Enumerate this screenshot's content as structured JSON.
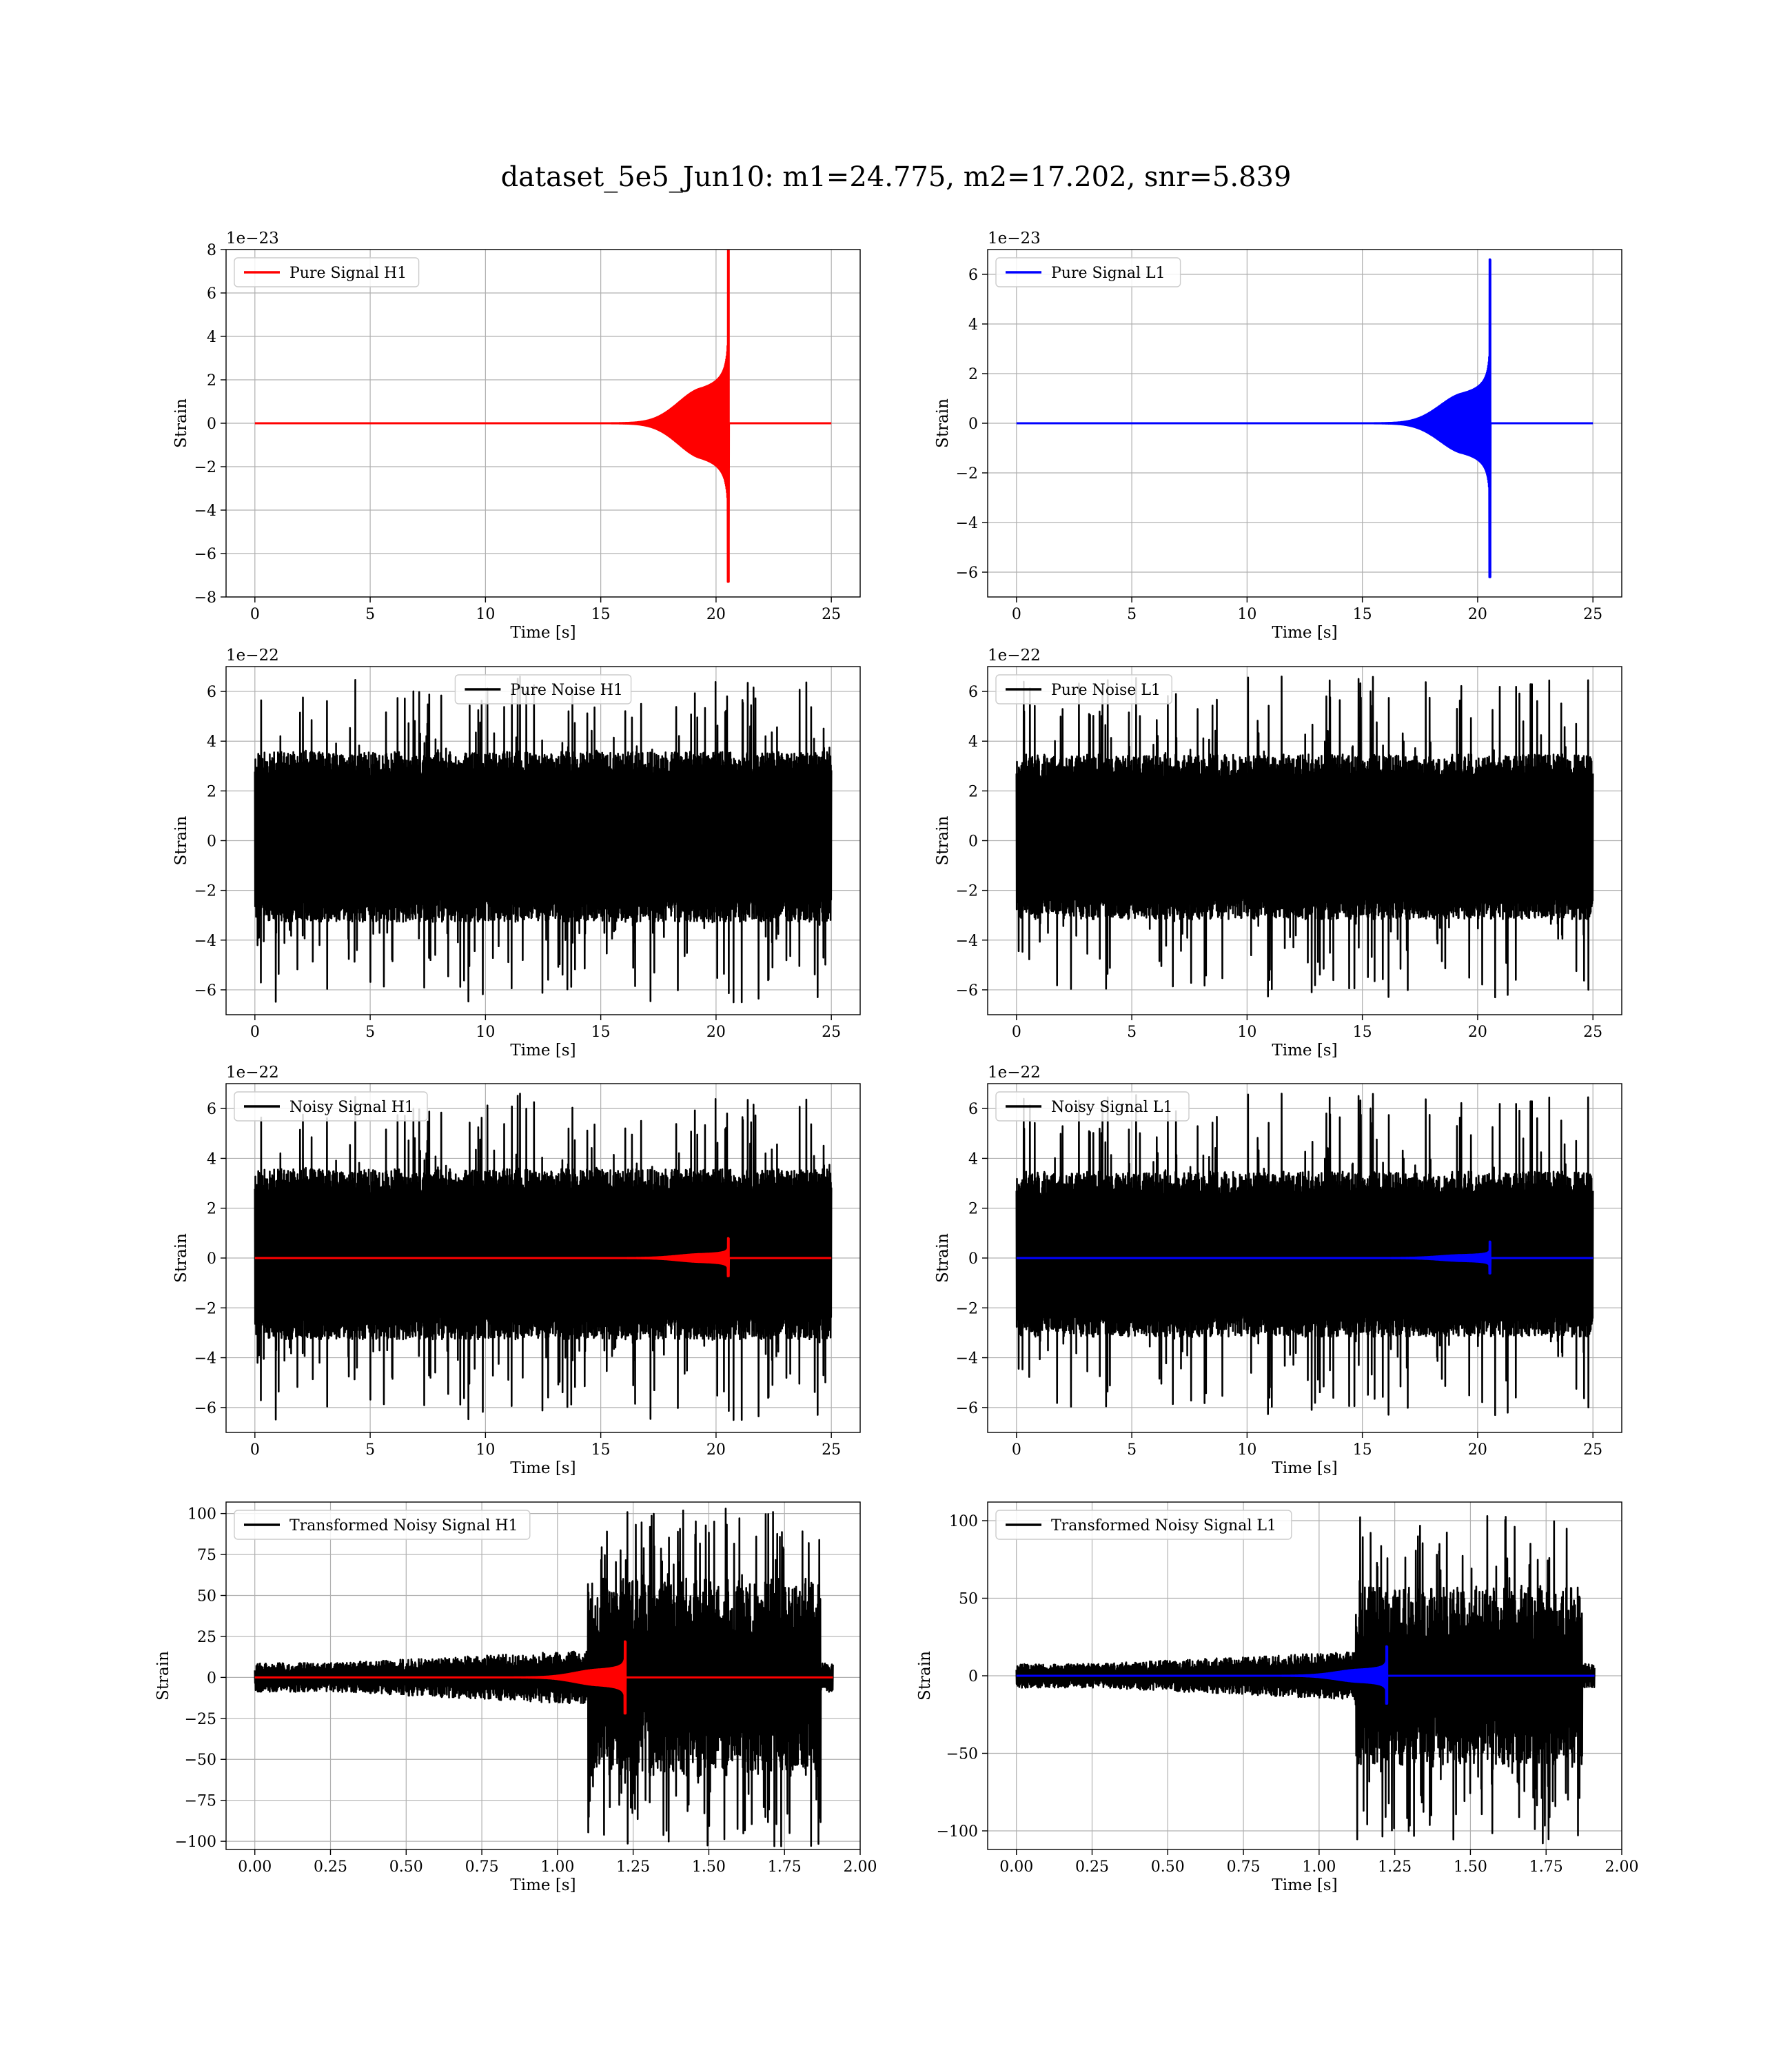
{
  "figure": {
    "title": "dataset_5e5_Jun10: m1=24.775, m2=17.202, snr=5.839"
  },
  "colors": {
    "h1_signal": "#ff0000",
    "l1_signal": "#0000ff",
    "noise": "#000000",
    "grid": "#b0b0b0"
  },
  "chart_data": [
    {
      "type": "line",
      "legend": "Pure Signal H1",
      "legend_position": "upper-left",
      "xlabel": "Time [s]",
      "ylabel": "Strain",
      "offset_text": "1e−23",
      "xlim": [
        -1.25,
        26.25
      ],
      "ylim": [
        -8,
        8
      ],
      "xticks": [
        0,
        5,
        10,
        15,
        20,
        25
      ],
      "xtick_labels": [
        "0",
        "5",
        "10",
        "15",
        "20",
        "25"
      ],
      "yticks": [
        -8,
        -6,
        -4,
        -2,
        0,
        2,
        4,
        6,
        8
      ],
      "ytick_labels": [
        "−8",
        "−6",
        "−4",
        "−2",
        "0",
        "2",
        "4",
        "6",
        "8"
      ],
      "grid": true,
      "series": [
        {
          "kind": "chirp",
          "color": "#ff0000",
          "x_start": 0,
          "x_end": 25,
          "merger_time": 20.55,
          "peak_positive": 8.0,
          "peak_negative": -7.3,
          "plateau": 2.0
        }
      ]
    },
    {
      "type": "line",
      "legend": "Pure Signal L1",
      "legend_position": "upper-left",
      "xlabel": "Time [s]",
      "ylabel": "Strain",
      "offset_text": "1e−23",
      "xlim": [
        -1.25,
        26.25
      ],
      "ylim": [
        -7,
        7
      ],
      "xticks": [
        0,
        5,
        10,
        15,
        20,
        25
      ],
      "xtick_labels": [
        "0",
        "5",
        "10",
        "15",
        "20",
        "25"
      ],
      "yticks": [
        -6,
        -4,
        -2,
        0,
        2,
        4,
        6
      ],
      "ytick_labels": [
        "−6",
        "−4",
        "−2",
        "0",
        "2",
        "4",
        "6"
      ],
      "grid": true,
      "series": [
        {
          "kind": "chirp",
          "color": "#0000ff",
          "x_start": 0,
          "x_end": 25,
          "merger_time": 20.55,
          "peak_positive": 6.6,
          "peak_negative": -6.2,
          "plateau": 1.5
        }
      ]
    },
    {
      "type": "line",
      "legend": "Pure Noise H1",
      "legend_position": "upper-center",
      "xlabel": "Time [s]",
      "ylabel": "Strain",
      "offset_text": "1e−22",
      "xlim": [
        -1.25,
        26.25
      ],
      "ylim": [
        -7,
        7
      ],
      "xticks": [
        0,
        5,
        10,
        15,
        20,
        25
      ],
      "xtick_labels": [
        "0",
        "5",
        "10",
        "15",
        "20",
        "25"
      ],
      "yticks": [
        -6,
        -4,
        -2,
        0,
        2,
        4,
        6
      ],
      "ytick_labels": [
        "−6",
        "−4",
        "−2",
        "0",
        "2",
        "4",
        "6"
      ],
      "grid": true,
      "series": [
        {
          "kind": "noise",
          "color": "#000000",
          "x_start": 0,
          "x_end": 25,
          "max": 6.6,
          "min": -6.5,
          "body_high": 3.5,
          "body_low": -3.2,
          "seed": 11
        }
      ]
    },
    {
      "type": "line",
      "legend": "Pure Noise L1",
      "legend_position": "upper-left",
      "xlabel": "Time [s]",
      "ylabel": "Strain",
      "offset_text": "1e−22",
      "xlim": [
        -1.25,
        26.25
      ],
      "ylim": [
        -7,
        7
      ],
      "xticks": [
        0,
        5,
        10,
        15,
        20,
        25
      ],
      "xtick_labels": [
        "0",
        "5",
        "10",
        "15",
        "20",
        "25"
      ],
      "yticks": [
        -6,
        -4,
        -2,
        0,
        2,
        4,
        6
      ],
      "ytick_labels": [
        "−6",
        "−4",
        "−2",
        "0",
        "2",
        "4",
        "6"
      ],
      "grid": true,
      "series": [
        {
          "kind": "noise",
          "color": "#000000",
          "x_start": 0,
          "x_end": 25,
          "max": 6.6,
          "min": -6.3,
          "body_high": 3.4,
          "body_low": -3.1,
          "seed": 23
        }
      ]
    },
    {
      "type": "line",
      "legend": "Noisy Signal H1",
      "legend_position": "upper-left",
      "xlabel": "Time [s]",
      "ylabel": "Strain",
      "offset_text": "1e−22",
      "xlim": [
        -1.25,
        26.25
      ],
      "ylim": [
        -7,
        7
      ],
      "xticks": [
        0,
        5,
        10,
        15,
        20,
        25
      ],
      "xtick_labels": [
        "0",
        "5",
        "10",
        "15",
        "20",
        "25"
      ],
      "yticks": [
        -6,
        -4,
        -2,
        0,
        2,
        4,
        6
      ],
      "ytick_labels": [
        "−6",
        "−4",
        "−2",
        "0",
        "2",
        "4",
        "6"
      ],
      "grid": true,
      "series": [
        {
          "kind": "noise",
          "color": "#000000",
          "x_start": 0,
          "x_end": 25,
          "max": 6.6,
          "min": -6.5,
          "body_high": 3.5,
          "body_low": -3.2,
          "seed": 11
        },
        {
          "kind": "chirp",
          "color": "#ff0000",
          "x_start": 0,
          "x_end": 25,
          "merger_time": 20.55,
          "peak_positive": 0.8,
          "peak_negative": -0.73,
          "plateau": 0.2
        }
      ]
    },
    {
      "type": "line",
      "legend": "Noisy Signal L1",
      "legend_position": "upper-left",
      "xlabel": "Time [s]",
      "ylabel": "Strain",
      "offset_text": "1e−22",
      "xlim": [
        -1.25,
        26.25
      ],
      "ylim": [
        -7,
        7
      ],
      "xticks": [
        0,
        5,
        10,
        15,
        20,
        25
      ],
      "xtick_labels": [
        "0",
        "5",
        "10",
        "15",
        "20",
        "25"
      ],
      "yticks": [
        -6,
        -4,
        -2,
        0,
        2,
        4,
        6
      ],
      "ytick_labels": [
        "−6",
        "−4",
        "−2",
        "0",
        "2",
        "4",
        "6"
      ],
      "grid": true,
      "series": [
        {
          "kind": "noise",
          "color": "#000000",
          "x_start": 0,
          "x_end": 25,
          "max": 6.6,
          "min": -6.3,
          "body_high": 3.4,
          "body_low": -3.1,
          "seed": 23
        },
        {
          "kind": "chirp",
          "color": "#0000ff",
          "x_start": 0,
          "x_end": 25,
          "merger_time": 20.55,
          "peak_positive": 0.66,
          "peak_negative": -0.62,
          "plateau": 0.15
        }
      ]
    },
    {
      "type": "line",
      "legend": "Transformed Noisy Signal H1",
      "legend_position": "upper-left",
      "xlabel": "Time [s]",
      "ylabel": "Strain",
      "offset_text": "",
      "xlim": [
        -0.095,
        2.0
      ],
      "ylim": [
        -105,
        107
      ],
      "xticks": [
        0,
        0.25,
        0.5,
        0.75,
        1.0,
        1.25,
        1.5,
        1.75,
        2.0
      ],
      "xtick_labels": [
        "0.00",
        "0.25",
        "0.50",
        "0.75",
        "1.00",
        "1.25",
        "1.50",
        "1.75",
        "2.00"
      ],
      "yticks": [
        -100,
        -75,
        -50,
        -25,
        0,
        25,
        50,
        75,
        100
      ],
      "ytick_labels": [
        "−100",
        "−75",
        "−50",
        "−25",
        "0",
        "25",
        "50",
        "75",
        "100"
      ],
      "grid": true,
      "series": [
        {
          "kind": "whitened",
          "color": "#000000",
          "x_start": 0,
          "x_end": 1.91,
          "step_time": 1.1,
          "end_time": 1.87,
          "early_amp": 8,
          "mid_amp": 15,
          "late_amp": 55,
          "max": 103,
          "min": -103,
          "seed": 31
        },
        {
          "kind": "chirp",
          "color": "#ff0000",
          "x_start": 0,
          "x_end": 1.91,
          "merger_time": 1.225,
          "peak_positive": 22,
          "peak_negative": -22,
          "plateau": 6
        }
      ]
    },
    {
      "type": "line",
      "legend": "Transformed Noisy Signal L1",
      "legend_position": "upper-left",
      "xlabel": "Time [s]",
      "ylabel": "Strain",
      "offset_text": "",
      "xlim": [
        -0.095,
        2.0
      ],
      "ylim": [
        -112,
        112
      ],
      "xticks": [
        0,
        0.25,
        0.5,
        0.75,
        1.0,
        1.25,
        1.5,
        1.75,
        2.0
      ],
      "xtick_labels": [
        "0.00",
        "0.25",
        "0.50",
        "0.75",
        "1.00",
        "1.25",
        "1.50",
        "1.75",
        "2.00"
      ],
      "yticks": [
        -100,
        -50,
        0,
        50,
        100
      ],
      "ytick_labels": [
        "−100",
        "−50",
        "0",
        "50",
        "100"
      ],
      "grid": true,
      "series": [
        {
          "kind": "whitened",
          "color": "#000000",
          "x_start": 0,
          "x_end": 1.91,
          "step_time": 1.12,
          "end_time": 1.87,
          "early_amp": 7,
          "mid_amp": 14,
          "late_amp": 52,
          "max": 103,
          "min": -108,
          "seed": 47
        },
        {
          "kind": "chirp",
          "color": "#0000ff",
          "x_start": 0,
          "x_end": 1.91,
          "merger_time": 1.225,
          "peak_positive": 19,
          "peak_negative": -18,
          "plateau": 5
        }
      ]
    }
  ]
}
